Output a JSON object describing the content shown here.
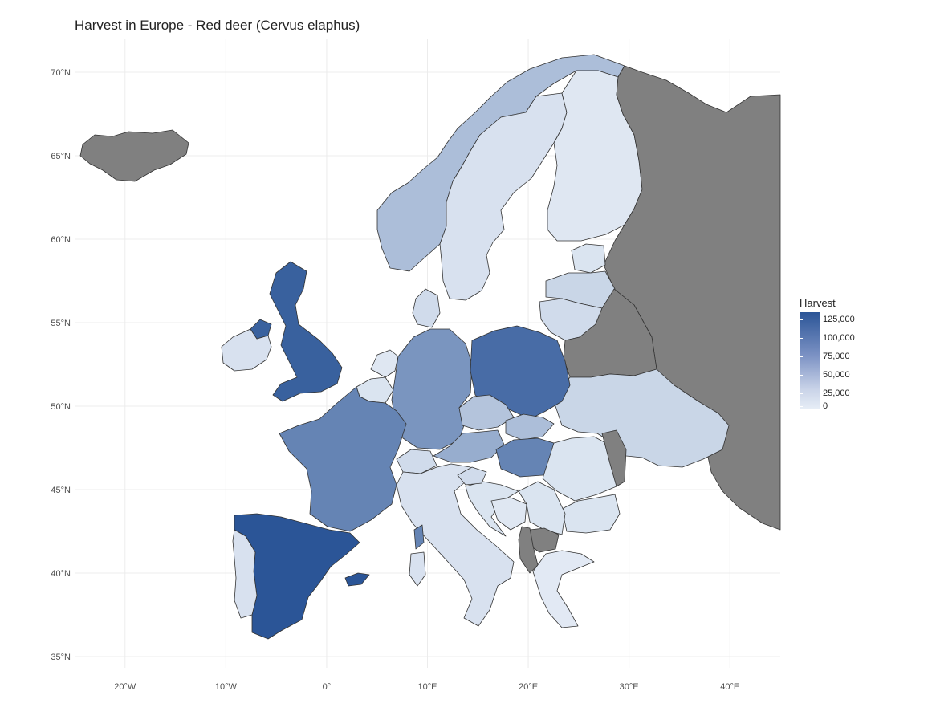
{
  "title": "Harvest in Europe - Red deer (Cervus elaphus)",
  "map": {
    "lat_labels": [
      "70°N",
      "65°N",
      "60°N",
      "55°N",
      "50°N",
      "45°N",
      "40°N",
      "35°N"
    ],
    "lon_labels": [
      "20°W",
      "10°W",
      "0°",
      "10°E",
      "20°E",
      "30°E",
      "40°E"
    ],
    "lat_values": [
      70,
      65,
      60,
      55,
      50,
      45,
      40,
      35
    ],
    "lon_values": [
      -20,
      -10,
      0,
      10,
      20,
      30,
      40
    ],
    "regions": [
      {
        "name": "Iceland",
        "value": null
      },
      {
        "name": "Norway",
        "value": 40000
      },
      {
        "name": "Sweden",
        "value": 10000
      },
      {
        "name": "Finland",
        "value": 5000
      },
      {
        "name": "Russia",
        "value": null
      },
      {
        "name": "Estonia",
        "value": 8000
      },
      {
        "name": "Latvia",
        "value": 20000
      },
      {
        "name": "Lithuania",
        "value": 15000
      },
      {
        "name": "Belarus",
        "value": null
      },
      {
        "name": "Ukraine",
        "value": 20000
      },
      {
        "name": "United Kingdom",
        "value": 120000
      },
      {
        "name": "Ireland",
        "value": 10000
      },
      {
        "name": "Northern Ireland",
        "value": 120000
      },
      {
        "name": "Denmark",
        "value": 15000
      },
      {
        "name": "Netherlands",
        "value": 5000
      },
      {
        "name": "Belgium",
        "value": 8000
      },
      {
        "name": "Germany",
        "value": 75000
      },
      {
        "name": "Poland",
        "value": 110000
      },
      {
        "name": "France",
        "value": 90000
      },
      {
        "name": "Czechia",
        "value": 35000
      },
      {
        "name": "Slovakia",
        "value": 40000
      },
      {
        "name": "Austria",
        "value": 55000
      },
      {
        "name": "Hungary",
        "value": 90000
      },
      {
        "name": "Switzerland",
        "value": 15000
      },
      {
        "name": "Italy",
        "value": 10000
      },
      {
        "name": "Spain",
        "value": 130000
      },
      {
        "name": "Portugal",
        "value": 10000
      },
      {
        "name": "Romania",
        "value": 8000
      },
      {
        "name": "Moldova",
        "value": null
      },
      {
        "name": "Bulgaria",
        "value": 8000
      },
      {
        "name": "Serbia",
        "value": 8000
      },
      {
        "name": "Croatia",
        "value": 8000
      },
      {
        "name": "Bosnia",
        "value": 5000
      },
      {
        "name": "Slovenia",
        "value": 15000
      },
      {
        "name": "North Macedonia",
        "value": null
      },
      {
        "name": "Albania",
        "value": null
      },
      {
        "name": "Greece",
        "value": 3000
      },
      {
        "name": "Corsica",
        "value": 90000
      },
      {
        "name": "Sardinia",
        "value": 10000
      },
      {
        "name": "Balearic",
        "value": 130000
      }
    ]
  },
  "legend": {
    "title": "Harvest",
    "ticks": [
      "125,000",
      "100,000",
      "75,000",
      "50,000",
      "25,000",
      "0"
    ],
    "tick_values": [
      125000,
      100000,
      75000,
      50000,
      25000,
      0
    ],
    "max": 130000
  },
  "colors": {
    "no_data": "#808080",
    "high": "#2b5597",
    "low": "#e6edf6",
    "border": "#333333",
    "grid": "#ececec"
  }
}
